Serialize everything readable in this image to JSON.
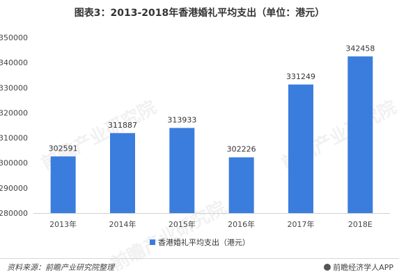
{
  "chart_data": {
    "type": "bar",
    "title": "图表3：2013-2018年香港婚礼平均支出（单位：港元）",
    "categories": [
      "2013年",
      "2014年",
      "2015年",
      "2016年",
      "2017年",
      "2018E"
    ],
    "series": [
      {
        "name": "香港婚礼平均支出（港元）",
        "values": [
          302591,
          311887,
          313933,
          302226,
          331249,
          342458
        ]
      }
    ],
    "ylim": [
      280000,
      350000
    ],
    "yticks": [
      280000,
      290000,
      300000,
      310000,
      320000,
      330000,
      340000,
      350000
    ],
    "bar_color": "#3b7ddd",
    "grid": false,
    "legend_position": "bottom"
  },
  "watermark": "前瞻产业研究院",
  "footer": {
    "source": "资料来源：前瞻产业研究院整理",
    "brand": "前瞻经济学人APP"
  }
}
